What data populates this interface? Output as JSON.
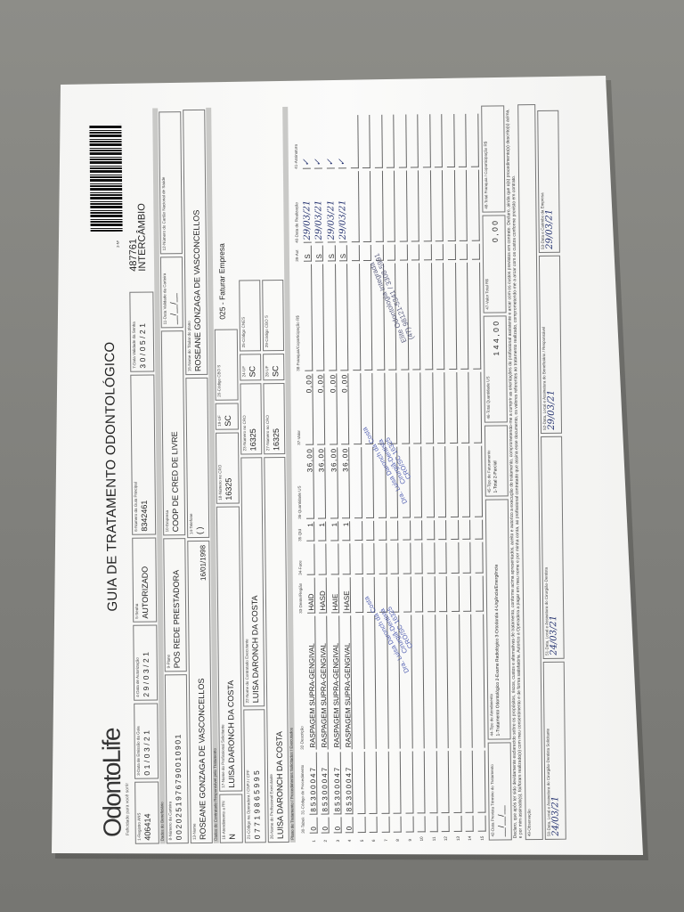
{
  "header": {
    "logo_text": "OdontoLife",
    "logo_tagline": "Felicidade para você sorrir",
    "title": "GUIA DE TRATAMENTO ODONTOLÓGICO",
    "ans_label": "2-Nº",
    "guide_number": "487761",
    "guide_type": "INTERCÂMBIO"
  },
  "row1": {
    "registro_ans": {
      "label": "1-Registro ANS",
      "value": "406414"
    },
    "data_emissao": {
      "label": "3-Data de Emissão da Guia",
      "value": "01/03/21"
    },
    "data_autorizacao": {
      "label": "4-Data de Autorização",
      "value": "29/03/21"
    },
    "senha": {
      "label": "5-Senha",
      "value": "AUTORIZADO"
    },
    "guia_principal": {
      "label": "6-Número da Guia Principal",
      "value": "8342461"
    },
    "validade_senha": {
      "label": "7-Data Validade da Senha",
      "value": "30/05/21"
    }
  },
  "sections": {
    "beneficiario": "Dados do Beneficiário",
    "contratado": "Dados do Contratado Responsável pelo Tratamento",
    "plano": "Plano de Tratamento / Procedimentos Solicitados / Executados"
  },
  "row2": {
    "carteira": {
      "label": "8-Número da Carteira",
      "value": "0020251976790010901"
    },
    "plano": {
      "label": "9-Plano",
      "value": "POS REDE PRESTADORA"
    },
    "empresa": {
      "label": "10-Empresa",
      "value": "COOP DE CRED DE LIVRE"
    },
    "validade_carteira": {
      "label": "11-Data Validade da Carteira",
      "value": "__/__/__"
    },
    "cns": {
      "label": "12-Número do Cartão Nacional de Saúde",
      "value": ""
    }
  },
  "row3": {
    "nome": {
      "label": "13-Nome",
      "value": "ROSEANE GONZAGA DE VASCONCELLOS"
    },
    "nascimento": "16/01/1998",
    "telefone": {
      "label": "14-Telefone",
      "value": "(   )"
    },
    "titular": {
      "label": "15-Nome do Titular do plano",
      "value": "ROSEANE GONZAGA DE VASCONCELLOS"
    }
  },
  "row4": {
    "rn": {
      "label": "16-Atendimento a RN",
      "value": "N"
    },
    "solicitante": {
      "label": "17-Nome do Profissional Solicitante",
      "value": "LUISA DARONCH DA COSTA"
    },
    "cro": {
      "label": "18-Número no CRO",
      "value": "16325"
    },
    "uf": {
      "label": "19-UF",
      "value": "SC"
    },
    "cbo": {
      "label": "20-Código CBO S",
      "value": ""
    },
    "faturamento": "025 - Faturar Empresa"
  },
  "row5": {
    "codigo_operadora": {
      "label": "21-Código na Operadora / CNPJ / CPF",
      "value": "07719865995"
    },
    "contratado": {
      "label": "22-Nome do Contratado Executante",
      "value": "LUISA DARONCH DA COSTA"
    },
    "cro": {
      "label": "23-Número no CRO",
      "value": "16325"
    },
    "uf": {
      "label": "24-UF",
      "value": "SC"
    },
    "cnes": {
      "label": "25-Código CNES",
      "value": ""
    }
  },
  "row6": {
    "executante": {
      "label": "26-Nome do Profissional Executante",
      "value": "LUISA DARONCH DA COSTA"
    },
    "cro": {
      "label": "27-Número no CRO",
      "value": "16325"
    },
    "uf": {
      "label": "28-UF",
      "value": "SC"
    },
    "cbo": {
      "label": "29-Código CBO S",
      "value": ""
    }
  },
  "table": {
    "columns": [
      "30-Tabela",
      "31-Código do Procedimento",
      "32-Descrição",
      "33-Dente/Região",
      "34-Face",
      "35-Qtd",
      "36-Quantidade US",
      "37-Valor",
      "38-Franquia/Coparticipação R$",
      "39-Aut",
      "40-Data de Realização",
      "41-Assinatura"
    ],
    "rows": [
      {
        "n": "1",
        "tabela": "0",
        "codigo": "85300047",
        "descricao": "RASPAGEM SUPRA-GENGIVAL",
        "dente": "HAID",
        "face": "",
        "qtd": "1",
        "us": "36,00",
        "valor": "0,00",
        "franquia": "",
        "aut": "S",
        "data": "29/03/21"
      },
      {
        "n": "2",
        "tabela": "0",
        "codigo": "85300047",
        "descricao": "RASPAGEM SUPRA-GENGIVAL",
        "dente": "HASD",
        "face": "",
        "qtd": "1",
        "us": "36,00",
        "valor": "0,00",
        "franquia": "",
        "aut": "S",
        "data": "29/03/21"
      },
      {
        "n": "3",
        "tabela": "0",
        "codigo": "85300047",
        "descricao": "RASPAGEM SUPRA-GENGIVAL",
        "dente": "HAIE",
        "face": "",
        "qtd": "1",
        "us": "36,00",
        "valor": "0,00",
        "franquia": "",
        "aut": "S",
        "data": "29/03/21"
      },
      {
        "n": "4",
        "tabela": "0",
        "codigo": "85300047",
        "descricao": "RASPAGEM SUPRA-GENGIVAL",
        "dente": "HASE",
        "face": "",
        "qtd": "1",
        "us": "36,00",
        "valor": "0,00",
        "franquia": "",
        "aut": "S",
        "data": "29/03/21"
      },
      {
        "n": "5"
      },
      {
        "n": "6"
      },
      {
        "n": "7"
      },
      {
        "n": "8"
      },
      {
        "n": "9"
      },
      {
        "n": "10"
      },
      {
        "n": "11"
      },
      {
        "n": "12"
      },
      {
        "n": "13"
      },
      {
        "n": "14"
      },
      {
        "n": "15"
      }
    ]
  },
  "footer": {
    "termino": {
      "label": "42-Data Prevista Término do Tratamento",
      "value": "__/__/__"
    },
    "tipo_atendimento": {
      "label": "44-Tipo de Atendimento",
      "value": "1-Tratamento Odontológico 2-Exame Radiológico 3-Ortodontia 4-Urgência/Emergência"
    },
    "tipo_faturamento": {
      "label": "45-Tipo de Faturamento",
      "value": "1-Total 2-Parcial"
    },
    "total_us": {
      "label": "46-Total Quantidade US",
      "value": "144,00"
    },
    "valor_total": {
      "label": "47-Valor Total R$",
      "value": "0,00"
    },
    "total_franquia": {
      "label": "48-Total Franquia / Coparticipação R$",
      "value": ""
    }
  },
  "declaration": "Declaro, que após ter sido devidamente esclarecido sobre os propósitos, riscos, custos e alternativas de tratamento, conforme acima apresentados, aceito e autorizo a execução do tratamento, comprometendo-me a cumprir as orientações do profissional assistente e arcar com os custos previstos em contrato. Declaro, ainda que o(s) procedimento(s) descrito(s) acima, e por mim assinado(s), foi/foram realizado(s) com meu consentimento e de forma satisfatória. Autorizo a Operadora a pagar em meu nome e por minha conta, ao profissional contratado que assina esse documento, os valores referentes ao tratamento realizado, comprometendo-me a arcar com os custos conforme previsto em contrato.",
  "observacao_label": "49-Observação",
  "signatures": [
    {
      "label": "50-Data, Local e Assinatura do Cirurgião-Dentista Solicitante",
      "date": "24/03/21"
    },
    {
      "label": "51-Data, Local e Assinatura do Cirurgião-Dentista",
      "date": "24/03/21"
    },
    {
      "label": "52-Data, Local e Assinatura do Beneficiário / Responsável",
      "date": "29/03/21"
    },
    {
      "label": "53-Data e Carimbo da Empresa",
      "date": "29/03/21"
    }
  ],
  "stamps": {
    "dentist": [
      "Dra. Luisa Daronch da Costa",
      "Cirurgiã-Dentista",
      "CRO/SC 16325"
    ],
    "clinic": [
      "Elite Odontologia Integrada",
      "(47) 98121-5341 / 3308-5991"
    ]
  },
  "colors": {
    "ink": "#22306e",
    "stamp": "#3a4aa8",
    "section_bar": "#c9c9c7"
  }
}
